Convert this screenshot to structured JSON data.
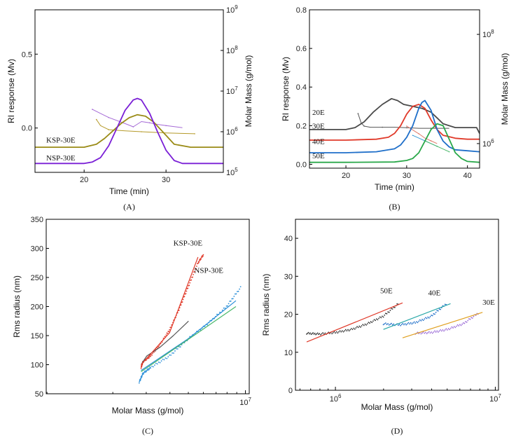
{
  "chart_data": [
    {
      "type": "line",
      "caption": "(A)",
      "xlabel": "Time (min)",
      "ylabel": "RI response (Mv)",
      "y2label": "Molar Mass (g/mol)",
      "xlim": [
        14,
        37
      ],
      "ylim": [
        -0.3,
        0.8
      ],
      "y2lim_log10": [
        5,
        9
      ],
      "x_ticks": [
        20,
        30
      ],
      "y_ticks": [
        "0.0",
        "0.5"
      ],
      "y2_ticks": [
        {
          "base": "10",
          "exp": "5"
        },
        {
          "base": "10",
          "exp": "6"
        },
        {
          "base": "10",
          "exp": "7"
        },
        {
          "base": "10",
          "exp": "8"
        },
        {
          "base": "10",
          "exp": "9"
        }
      ],
      "series": [
        {
          "name": "KSP-30E",
          "color": "#9a8b16",
          "x": [
            14,
            20,
            21.5,
            22.5,
            23.5,
            24.5,
            25.5,
            26.5,
            27.5,
            28.5,
            29.5,
            31,
            33,
            37
          ],
          "y": [
            -0.13,
            -0.13,
            -0.11,
            -0.07,
            -0.02,
            0.03,
            0.07,
            0.09,
            0.08,
            0.04,
            -0.02,
            -0.11,
            -0.13,
            -0.13
          ]
        },
        {
          "name": "NSP-30E",
          "color": "#7a1fd6",
          "x": [
            14,
            20,
            21,
            22,
            23,
            24,
            25,
            26,
            26.5,
            27,
            28,
            29,
            30,
            31,
            32,
            37
          ],
          "y": [
            -0.24,
            -0.24,
            -0.23,
            -0.2,
            -0.12,
            0.0,
            0.12,
            0.19,
            0.2,
            0.19,
            0.1,
            -0.03,
            -0.15,
            -0.22,
            -0.24,
            -0.24
          ]
        }
      ],
      "molar_mass_series": [
        {
          "color": "#b59a2a",
          "x": [
            21.5,
            22,
            23,
            25,
            27,
            30,
            33.5
          ],
          "log10_y": [
            6.3,
            6.15,
            6.05,
            6.02,
            6.0,
            5.97,
            5.95
          ]
        },
        {
          "color": "#a56ad6",
          "x": [
            21,
            22,
            23,
            25,
            26,
            27,
            28,
            29,
            30,
            32
          ],
          "log10_y": [
            6.55,
            6.45,
            6.35,
            6.2,
            6.12,
            6.25,
            6.22,
            6.18,
            6.15,
            6.1
          ]
        }
      ]
    },
    {
      "type": "line",
      "caption": "(B)",
      "xlabel": "Time (min)",
      "ylabel": "RI response (Mv)",
      "y2label": "Molar Mass (g/mol)",
      "xlim": [
        14,
        42
      ],
      "ylim": [
        -0.02,
        0.8
      ],
      "y2lim_log10": [
        5.55,
        8.45
      ],
      "x_ticks": [
        20,
        30,
        40
      ],
      "y_ticks": [
        "0.0",
        "0.2",
        "0.4",
        "0.6",
        "0.8"
      ],
      "y2_ticks": [
        {
          "base": "10",
          "exp": "6"
        },
        {
          "base": "10",
          "exp": "8"
        }
      ],
      "series": [
        {
          "name": "20E",
          "color": "#4a4a4a",
          "x": [
            14,
            20,
            21.5,
            23,
            24.5,
            26,
            27.5,
            28.5,
            29.5,
            31,
            32.5,
            34,
            35,
            36,
            38,
            40,
            41.5,
            42
          ],
          "y": [
            0.18,
            0.18,
            0.19,
            0.22,
            0.27,
            0.31,
            0.34,
            0.33,
            0.31,
            0.3,
            0.29,
            0.27,
            0.24,
            0.21,
            0.19,
            0.19,
            0.19,
            0.16
          ]
        },
        {
          "name": "30E",
          "color": "#e03a2a",
          "x": [
            14,
            20,
            25,
            27,
            28,
            29,
            30,
            31,
            32,
            33,
            34,
            35,
            36,
            38,
            40,
            42
          ],
          "y": [
            0.125,
            0.125,
            0.13,
            0.14,
            0.16,
            0.2,
            0.26,
            0.3,
            0.31,
            0.29,
            0.23,
            0.18,
            0.15,
            0.135,
            0.13,
            0.13
          ]
        },
        {
          "name": "40E",
          "color": "#1f6fc9",
          "x": [
            14,
            20,
            25,
            28,
            29,
            30,
            31,
            32,
            32.5,
            33,
            34,
            35,
            36,
            37,
            38,
            40,
            42
          ],
          "y": [
            0.06,
            0.06,
            0.065,
            0.08,
            0.1,
            0.14,
            0.2,
            0.29,
            0.32,
            0.33,
            0.28,
            0.18,
            0.12,
            0.09,
            0.075,
            0.07,
            0.065
          ]
        },
        {
          "name": "50E",
          "color": "#2aa84a",
          "x": [
            14,
            20,
            28,
            30,
            31,
            32,
            33,
            34,
            35,
            36,
            37,
            38,
            39,
            40,
            42
          ],
          "y": [
            0.01,
            0.01,
            0.012,
            0.02,
            0.03,
            0.06,
            0.12,
            0.18,
            0.21,
            0.2,
            0.13,
            0.06,
            0.03,
            0.015,
            0.01
          ]
        }
      ],
      "molar_mass_series": [
        {
          "color": "#555555",
          "x": [
            22,
            22.5,
            23,
            24,
            26,
            28,
            30,
            32,
            34,
            37
          ],
          "log10_y": [
            6.55,
            6.38,
            6.32,
            6.3,
            6.3,
            6.3,
            6.29,
            6.28,
            6.28,
            6.28
          ]
        },
        {
          "color": "#e07a6a",
          "x": [
            30,
            31,
            32,
            33,
            34,
            35
          ],
          "log10_y": [
            6.32,
            6.25,
            6.18,
            6.1,
            6.05,
            6.0
          ]
        },
        {
          "color": "#3a9bd8",
          "x": [
            31,
            32,
            33,
            34,
            35
          ],
          "log10_y": [
            6.15,
            6.1,
            6.05,
            6.0,
            5.95
          ]
        },
        {
          "color": "#4ab86a",
          "x": [
            33,
            34,
            35,
            36,
            37
          ],
          "log10_y": [
            6.05,
            6.0,
            5.95,
            5.9,
            5.85
          ]
        }
      ]
    },
    {
      "type": "scatter",
      "caption": "(C)",
      "xlabel": "Molar Mass (g/mol)",
      "ylabel": "Rms radius (nm)",
      "xscale": "log",
      "xlim_log10": [
        5.95,
        7.02
      ],
      "ylim": [
        50,
        350
      ],
      "x_ticks": [
        {
          "base": "10",
          "exp": "7"
        }
      ],
      "y_ticks": [
        "50",
        "100",
        "150",
        "200",
        "250",
        "300",
        "350"
      ],
      "series": [
        {
          "name": "KSP-30E",
          "color": "#e03a2a",
          "log10_x": [
            6.45,
            6.46,
            6.5,
            6.55,
            6.6,
            6.65,
            6.7,
            6.75,
            6.78
          ],
          "y": [
            95,
            105,
            115,
            135,
            160,
            195,
            235,
            275,
            290
          ]
        },
        {
          "name": "NSP-30E",
          "color": "#2a8fd8",
          "log10_x": [
            6.44,
            6.46,
            6.5,
            6.6,
            6.7,
            6.8,
            6.9,
            6.98
          ],
          "y": [
            70,
            85,
            95,
            115,
            145,
            170,
            200,
            235
          ]
        }
      ],
      "fit_lines": [
        {
          "color": "#555555",
          "log10_x": [
            6.45,
            6.48,
            6.55,
            6.62,
            6.7
          ],
          "y": [
            100,
            115,
            130,
            150,
            175
          ]
        },
        {
          "color": "#e03a2a",
          "log10_x": [
            6.45,
            6.6,
            6.75
          ],
          "y": [
            100,
            155,
            285
          ]
        },
        {
          "color": "#2a8fd8",
          "log10_x": [
            6.45,
            6.7,
            6.95
          ],
          "y": [
            90,
            145,
            210
          ]
        },
        {
          "color": "#4ab86a",
          "log10_x": [
            6.45,
            6.75,
            6.95
          ],
          "y": [
            88,
            155,
            200
          ]
        }
      ]
    },
    {
      "type": "scatter",
      "caption": "(D)",
      "xlabel": "Molar Mass (g/mol)",
      "ylabel": "Rms radius (nm)",
      "xscale": "log",
      "xlim_log10": [
        5.75,
        7.02
      ],
      "ylim": [
        0,
        45
      ],
      "x_ticks": [
        {
          "base": "10",
          "exp": "6"
        },
        {
          "base": "10",
          "exp": "7"
        }
      ],
      "y_ticks": [
        "0",
        "10",
        "20",
        "30",
        "40"
      ],
      "series": [
        {
          "name": "50E",
          "color": "#333333",
          "log10_x": [
            5.82,
            5.9,
            6.0,
            6.1,
            6.2,
            6.3,
            6.4
          ],
          "y": [
            15,
            14.8,
            15.2,
            16,
            17.5,
            19.5,
            23
          ]
        },
        {
          "name": "40E",
          "color": "#1f6fc9",
          "log10_x": [
            6.3,
            6.4,
            6.5,
            6.6,
            6.7
          ],
          "y": [
            17.5,
            17.2,
            17.8,
            19.5,
            23
          ]
        },
        {
          "name": "30E",
          "color": "#9a6ad6",
          "log10_x": [
            6.5,
            6.6,
            6.7,
            6.8,
            6.9
          ],
          "y": [
            15,
            15.2,
            16,
            17.5,
            20.5
          ]
        }
      ],
      "fit_lines": [
        {
          "color": "#e03a2a",
          "log10_x": [
            5.82,
            6.42
          ],
          "y": [
            12.7,
            23
          ]
        },
        {
          "color": "#2aa8a8",
          "log10_x": [
            6.3,
            6.72
          ],
          "y": [
            16,
            22.8
          ]
        },
        {
          "color": "#e0a020",
          "log10_x": [
            6.42,
            6.92
          ],
          "y": [
            13.8,
            20.5
          ]
        }
      ]
    }
  ]
}
